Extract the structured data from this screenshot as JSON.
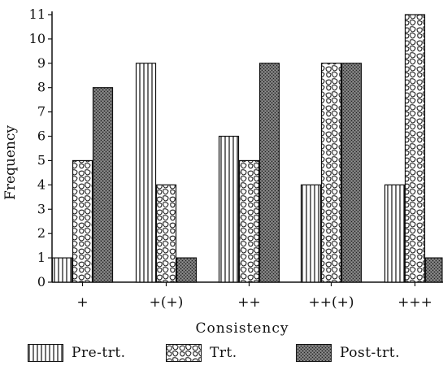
{
  "chart_data": {
    "type": "bar",
    "title": "",
    "xlabel": "Consistency",
    "ylabel": "Frequency",
    "ylim": [
      0,
      11
    ],
    "yticks": [
      "0",
      "1",
      "2",
      "3",
      "4",
      "5",
      "6",
      "7",
      "8",
      "9",
      "10",
      "11"
    ],
    "categories": [
      "+",
      "+(+)",
      "++",
      "++(+)",
      "+++"
    ],
    "series": [
      {
        "name": "Pre-trt.",
        "values": [
          1,
          9,
          6,
          4,
          4
        ],
        "pattern": "vertical-stripes"
      },
      {
        "name": "Trt.",
        "values": [
          5,
          4,
          5,
          9,
          11
        ],
        "pattern": "stone-cells"
      },
      {
        "name": "Post-trt.",
        "values": [
          8,
          1,
          9,
          9,
          1
        ],
        "pattern": "dense-stipple"
      }
    ],
    "grid": false,
    "legend_position": "bottom",
    "colors": {
      "ink": "#111111",
      "background": "#ffffff",
      "post_fill": "#6e6e6e"
    }
  }
}
